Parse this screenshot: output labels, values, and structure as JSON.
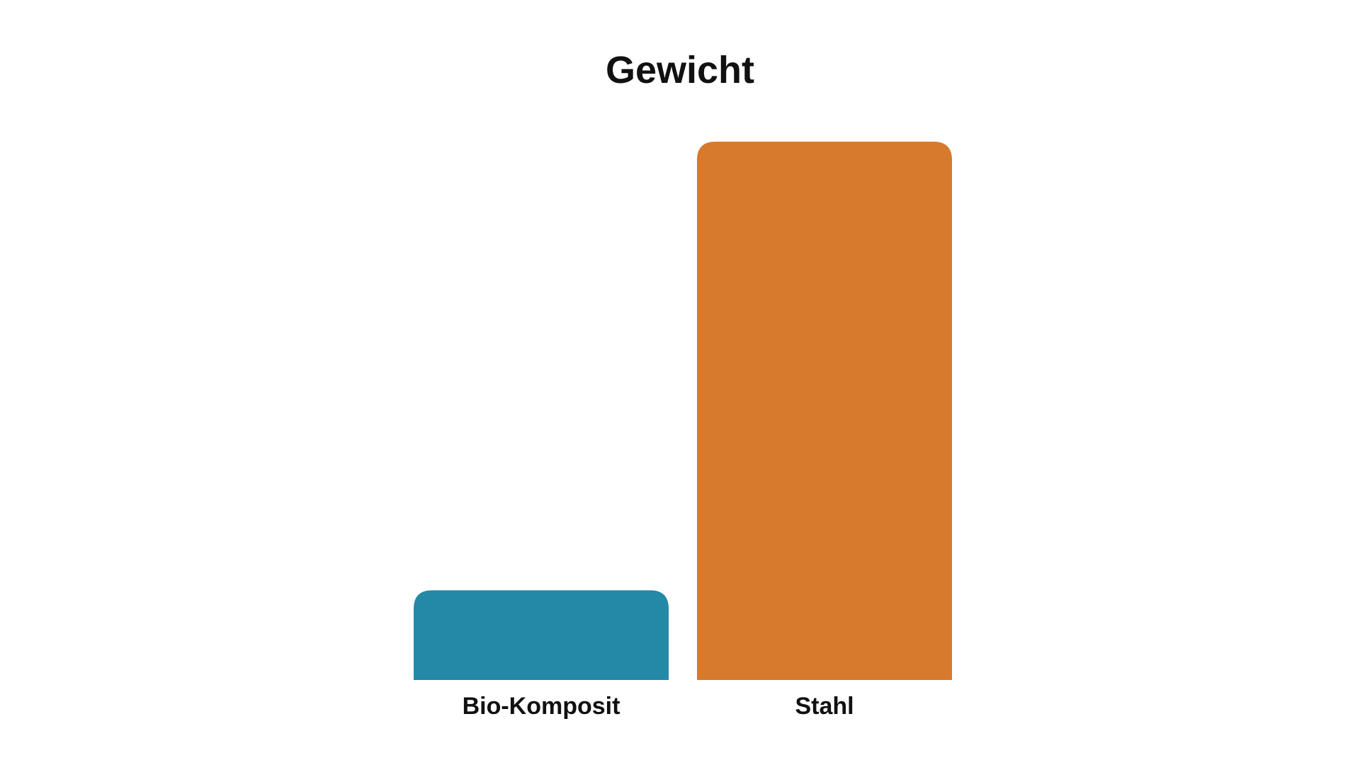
{
  "chart_data": {
    "type": "bar",
    "title": "Gewicht",
    "xlabel": "",
    "ylabel": "",
    "categories": [
      "Bio-Komposit",
      "Stahl"
    ],
    "values": [
      1,
      6
    ],
    "colors": [
      "#2389A7",
      "#D77A2D"
    ],
    "grid": false,
    "axes_visible": false,
    "legend": "none"
  }
}
